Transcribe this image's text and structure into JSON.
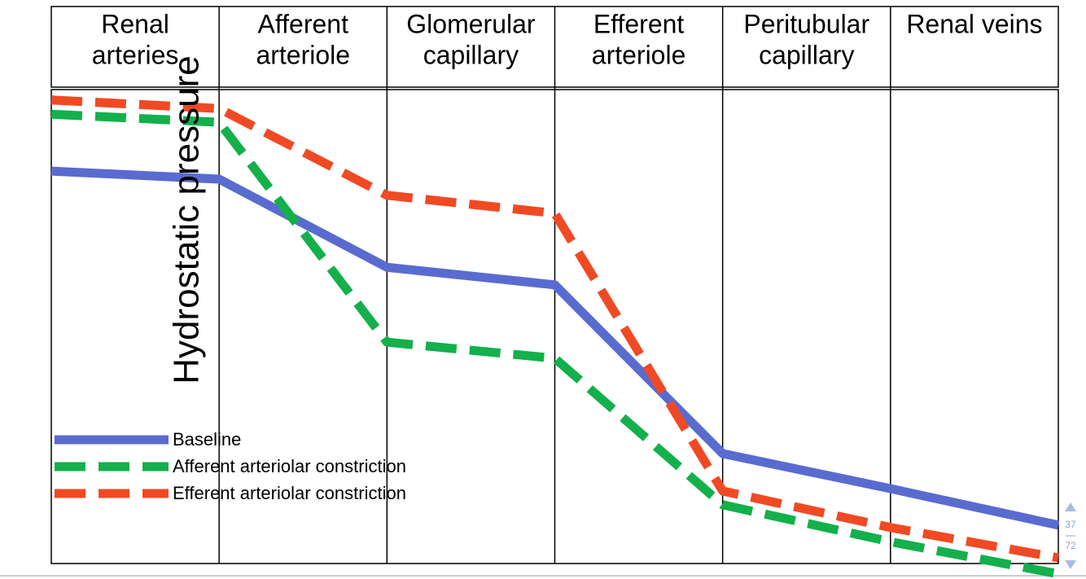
{
  "chart_data": {
    "type": "line",
    "y_label": "Hydrostatic pressure",
    "categories": [
      [
        "Renal",
        "arteries"
      ],
      [
        "Afferent",
        "arteriole"
      ],
      [
        "Glomerular",
        "capillary"
      ],
      [
        "Efferent",
        "arteriole"
      ],
      [
        "Peritubular",
        "capillary"
      ],
      [
        "Renal veins"
      ]
    ],
    "x": [
      0,
      1,
      2,
      3,
      4,
      5,
      6
    ],
    "xlim": [
      0,
      6
    ],
    "ylim": [
      0,
      100
    ],
    "series": [
      {
        "name": "Baseline",
        "color": "#5a6bd0",
        "style": "solid",
        "values": [
          82.8,
          81.1,
          62.5,
          58.8,
          23.2,
          15.8,
          8.1
        ]
      },
      {
        "name": "Afferent arteriolar constriction",
        "color": "#13b04b",
        "style": "dashed",
        "values": [
          94.8,
          93.1,
          46.7,
          43.3,
          12.4,
          4.6,
          -2.2
        ]
      },
      {
        "name": "Efferent arteriolar constriction",
        "color": "#f04a24",
        "style": "dashed",
        "values": [
          97.8,
          96.0,
          77.7,
          73.9,
          15.3,
          7.6,
          1.2
        ]
      }
    ]
  },
  "pager": {
    "current": 37,
    "total": 72
  }
}
